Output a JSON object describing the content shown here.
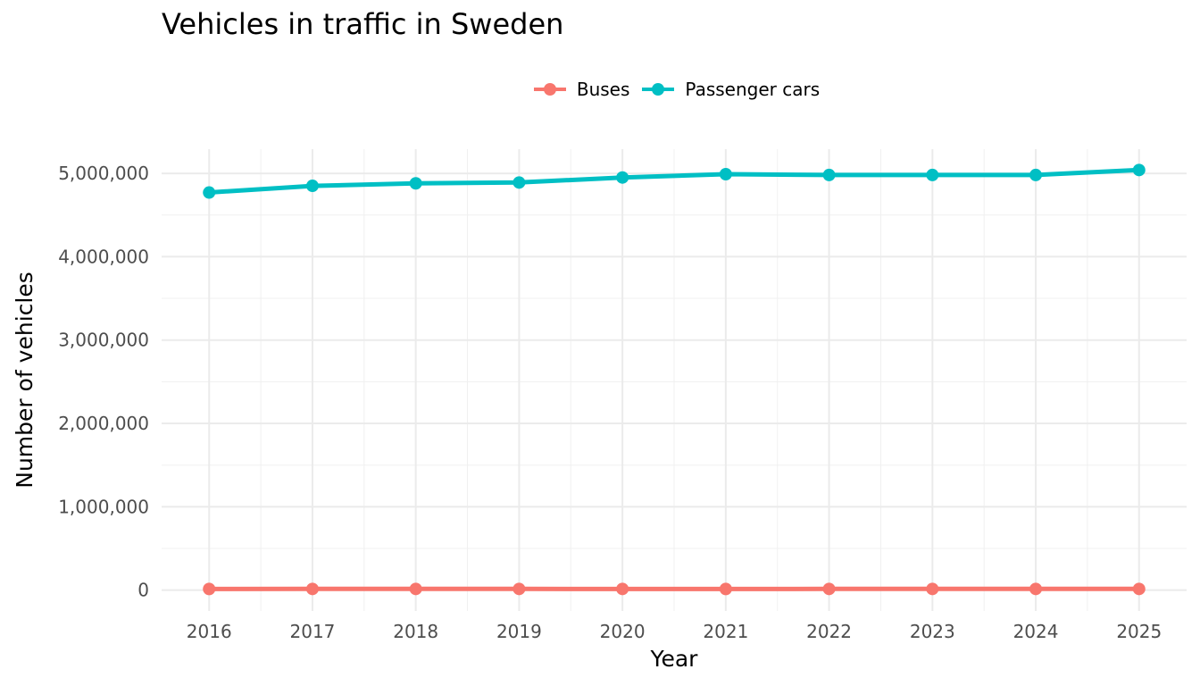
{
  "chart_data": {
    "type": "line",
    "title": "Vehicles in traffic in Sweden",
    "xlabel": "Year",
    "ylabel": "Number of vehicles",
    "x": [
      2016,
      2017,
      2018,
      2019,
      2020,
      2021,
      2022,
      2023,
      2024,
      2025
    ],
    "x_tick_labels": [
      "2016",
      "2017",
      "2018",
      "2019",
      "2020",
      "2021",
      "2022",
      "2023",
      "2024",
      "2025"
    ],
    "xlim": [
      2015.54,
      2025.46
    ],
    "ylim": [
      -250000,
      5290000
    ],
    "y_ticks": [
      0,
      1000000,
      2000000,
      3000000,
      4000000,
      5000000
    ],
    "y_tick_labels": [
      "0",
      "1,000,000",
      "2,000,000",
      "3,000,000",
      "4,000,000",
      "5,000,000"
    ],
    "grid": true,
    "legend_position": "top",
    "series": [
      {
        "name": "Buses",
        "color": "#F8766D",
        "values": [
          14000,
          14200,
          14400,
          14500,
          14100,
          14000,
          14200,
          14300,
          14400,
          14300
        ]
      },
      {
        "name": "Passenger cars",
        "color": "#00BFC4",
        "values": [
          4770000,
          4850000,
          4880000,
          4890000,
          4950000,
          4990000,
          4980000,
          4980000,
          4980000,
          5040000
        ]
      }
    ]
  }
}
